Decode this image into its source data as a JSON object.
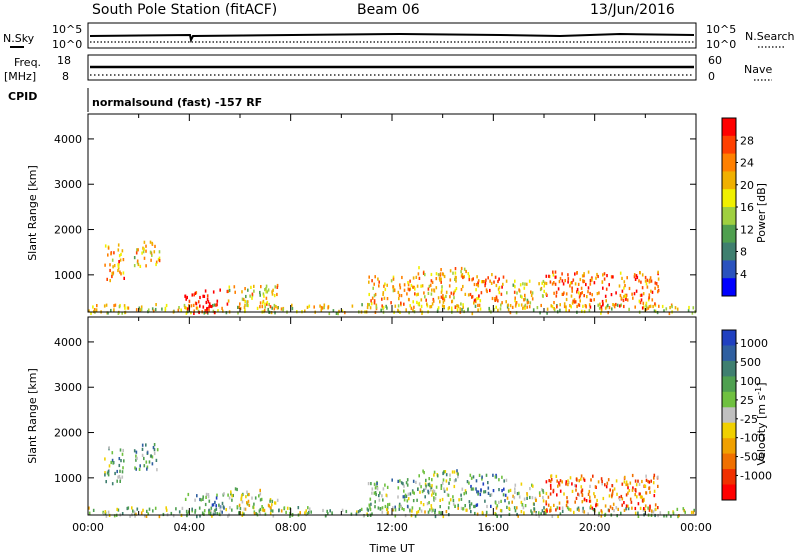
{
  "header": {
    "title": "South Pole Station (fitACF)",
    "beam": "Beam 06",
    "date": "13/Jun/2016"
  },
  "strip_panels": {
    "nsky": {
      "label": "N.Sky",
      "left_ticks": [
        "10^5",
        "10^0"
      ],
      "right_ticks": [
        "10^5",
        "10^0"
      ],
      "right_label": "N.Search"
    },
    "freq": {
      "label_line1": "Freq.",
      "label_line2": "[MHz]",
      "left_ticks": [
        "18",
        "8"
      ],
      "right_ticks": [
        "60",
        "0"
      ],
      "right_label": "Nave"
    },
    "cpid": {
      "label": "CPID",
      "text": "normalsound (fast) -157 RF"
    }
  },
  "chart_data": [
    {
      "type": "heatmap",
      "name": "power",
      "ylabel": "Slant Range [km]",
      "xlabel": "",
      "xlim": [
        0,
        24
      ],
      "ylim": [
        180,
        4550
      ],
      "y_ticks": [
        1000,
        2000,
        3000,
        4000
      ],
      "colorbar": {
        "label": "Power [dB]",
        "range": [
          0,
          32
        ],
        "ticks": [
          "4",
          "8",
          "12",
          "16",
          "20",
          "24",
          "28"
        ],
        "colors": [
          "#0000ff",
          "#2a52be",
          "#3f7f6f",
          "#4f9f4f",
          "#9fd040",
          "#f0f000",
          "#f0b000",
          "#ff8000",
          "#ff4000",
          "#ff0000"
        ]
      },
      "regions": [
        {
          "t0": 0.0,
          "t1": 24.0,
          "r0": 180,
          "r1": 380,
          "level": 0.55
        },
        {
          "t0": 0.6,
          "t1": 1.4,
          "r0": 900,
          "r1": 1700,
          "level": 0.7
        },
        {
          "t0": 1.8,
          "t1": 2.8,
          "r0": 1200,
          "r1": 1800,
          "level": 0.6
        },
        {
          "t0": 3.8,
          "t1": 5.5,
          "r0": 180,
          "r1": 700,
          "level": 0.95
        },
        {
          "t0": 5.5,
          "t1": 7.5,
          "r0": 300,
          "r1": 800,
          "level": 0.6
        },
        {
          "t0": 11.0,
          "t1": 13.0,
          "r0": 300,
          "r1": 1000,
          "level": 0.65
        },
        {
          "t0": 13.0,
          "t1": 15.0,
          "r0": 300,
          "r1": 1200,
          "level": 0.65
        },
        {
          "t0": 15.0,
          "t1": 16.5,
          "r0": 400,
          "r1": 1100,
          "level": 0.75
        },
        {
          "t0": 16.5,
          "t1": 18.0,
          "r0": 300,
          "r1": 900,
          "level": 0.6
        },
        {
          "t0": 18.0,
          "t1": 22.5,
          "r0": 300,
          "r1": 1100,
          "level": 0.8
        }
      ]
    },
    {
      "type": "heatmap",
      "name": "velocity",
      "ylabel": "Slant Range [km]",
      "xlabel": "Time UT",
      "xlim": [
        0,
        24
      ],
      "ylim": [
        180,
        4550
      ],
      "x_ticks": [
        "00:00",
        "04:00",
        "08:00",
        "12:00",
        "16:00",
        "20:00",
        "00:00"
      ],
      "y_ticks": [
        1000,
        2000,
        3000,
        4000
      ],
      "colorbar": {
        "label": "Velocity [m s",
        "label_sup": "-1",
        "label_close": "]",
        "ticks": [
          "1000",
          "500",
          "100",
          "25",
          "-25",
          "-100",
          "-500",
          "-1000"
        ],
        "colors": [
          "#2040c0",
          "#2f5fa0",
          "#3f7f70",
          "#4fa050",
          "#6fc040",
          "#c0c0c0",
          "#f0d000",
          "#f0a000",
          "#f07000",
          "#f03000",
          "#ff0000"
        ]
      },
      "regions": [
        {
          "t0": 0.0,
          "t1": 24.0,
          "r0": 180,
          "r1": 380,
          "level": 0.45
        },
        {
          "t0": 0.6,
          "t1": 1.4,
          "r0": 900,
          "r1": 1700,
          "level": 0.35
        },
        {
          "t0": 1.8,
          "t1": 2.8,
          "r0": 1200,
          "r1": 1800,
          "level": 0.3
        },
        {
          "t0": 3.8,
          "t1": 5.5,
          "r0": 180,
          "r1": 700,
          "level": 0.3
        },
        {
          "t0": 5.5,
          "t1": 7.5,
          "r0": 300,
          "r1": 800,
          "level": 0.5
        },
        {
          "t0": 11.0,
          "t1": 13.0,
          "r0": 300,
          "r1": 1000,
          "level": 0.35
        },
        {
          "t0": 13.0,
          "t1": 15.0,
          "r0": 300,
          "r1": 1200,
          "level": 0.4
        },
        {
          "t0": 15.0,
          "t1": 16.5,
          "r0": 400,
          "r1": 1100,
          "level": 0.25
        },
        {
          "t0": 16.5,
          "t1": 18.0,
          "r0": 300,
          "r1": 900,
          "level": 0.45
        },
        {
          "t0": 18.0,
          "t1": 22.5,
          "r0": 300,
          "r1": 1100,
          "level": 0.75
        }
      ]
    }
  ]
}
